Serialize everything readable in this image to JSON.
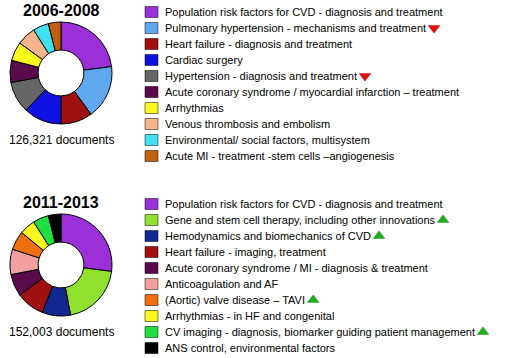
{
  "chart_data": [
    {
      "type": "pie",
      "title": "2006-2008",
      "subtitle": "126,321 documents",
      "series": [
        {
          "name": "Population risk factors for CVD - diagnosis and treatment",
          "color": "#9b30d9",
          "values": [
            23
          ]
        },
        {
          "name": "Pulmonary hypertension - mechanisms and treatment",
          "color": "#5fa8f0",
          "values": [
            17
          ],
          "marker": "triangle-down"
        },
        {
          "name": "Heart failure - diagnosis and treatment",
          "color": "#a01010",
          "values": [
            10
          ]
        },
        {
          "name": "Cardiac surgery",
          "color": "#1010e0",
          "values": [
            12
          ]
        },
        {
          "name": "Hypertension - diagnosis and treatment",
          "color": "#666666",
          "values": [
            10
          ],
          "marker": "triangle-down"
        },
        {
          "name": "Acute coronary syndrome / myocardial infarction – treatment",
          "color": "#5a0a4a",
          "values": [
            7
          ]
        },
        {
          "name": "Arrhythmias",
          "color": "#f8f820",
          "values": [
            6
          ]
        },
        {
          "name": "Venous thrombosis and embolism",
          "color": "#f4b48c",
          "values": [
            6
          ]
        },
        {
          "name": "Environmental/ social factors, multisystem",
          "color": "#40e0f0",
          "values": [
            5
          ]
        },
        {
          "name": "Acute MI - treatment -stem cells –angiogenesis",
          "color": "#c06010",
          "values": [
            4
          ]
        }
      ]
    },
    {
      "type": "pie",
      "title": "2011-2013",
      "subtitle": "152,003 documents",
      "series": [
        {
          "name": "Population risk factors for CVD - diagnosis and treatment",
          "color": "#9b30d9",
          "values": [
            27
          ]
        },
        {
          "name": "Gene and stem cell therapy, including other innovations",
          "color": "#90e030",
          "values": [
            20
          ],
          "marker": "triangle-up"
        },
        {
          "name": "Hemodynamics and biomechanics of CVD",
          "color": "#102890",
          "values": [
            9
          ],
          "marker": "triangle-up"
        },
        {
          "name": "Heart failure - imaging, treatment",
          "color": "#a01010",
          "values": [
            9
          ]
        },
        {
          "name": "Acute coronary syndrome / MI - diagnosis & treatment",
          "color": "#5a0a4a",
          "values": [
            7
          ]
        },
        {
          "name": "Anticoagulation and AF",
          "color": "#f4a0a0",
          "values": [
            8
          ]
        },
        {
          "name": "(Aortic) valve disease – TAVI",
          "color": "#f07010",
          "values": [
            6
          ],
          "marker": "triangle-up"
        },
        {
          "name": "Arrhythmias - in HF and congenital",
          "color": "#f8f820",
          "values": [
            5
          ]
        },
        {
          "name": "CV imaging - diagnosis, biomarker guiding patient management",
          "color": "#20e040",
          "values": [
            5
          ],
          "marker": "triangle-up"
        },
        {
          "name": "ANS control, environmental factors",
          "color": "#000000",
          "values": [
            4
          ]
        }
      ]
    }
  ]
}
